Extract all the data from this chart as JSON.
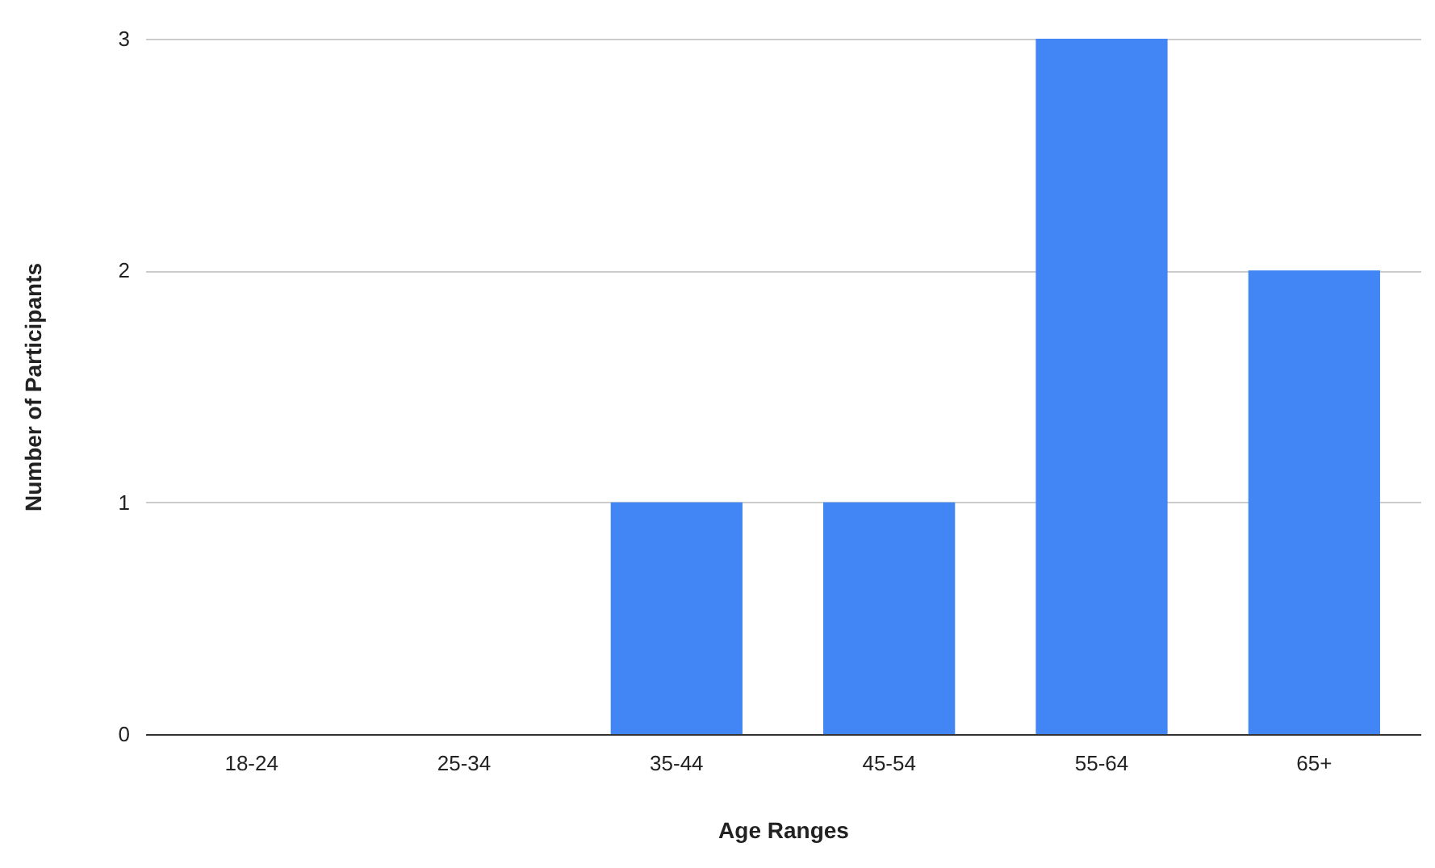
{
  "chart_data": {
    "type": "bar",
    "xlabel": "Age Ranges",
    "ylabel": "Number of Participants",
    "categories": [
      "18-24",
      "25-34",
      "35-44",
      "45-54",
      "55-64",
      "65+"
    ],
    "values": [
      0,
      0,
      1,
      1,
      3,
      2
    ],
    "color": "#4285f4",
    "ylim": [
      0,
      3
    ],
    "yticks": [
      0,
      1,
      2,
      3
    ],
    "grid": "y"
  }
}
